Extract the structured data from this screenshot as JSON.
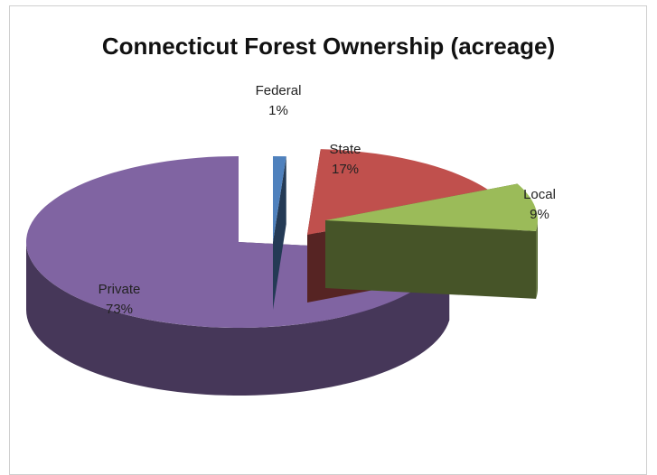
{
  "chart_data": {
    "type": "pie",
    "title": "Connecticut Forest Ownership (acreage)",
    "three_d": true,
    "exploded": true,
    "slices": [
      {
        "label": "Federal",
        "value": 1,
        "value_label": "1%",
        "color": "#4f81bd"
      },
      {
        "label": "State",
        "value": 17,
        "value_label": "17%",
        "color": "#c0504d"
      },
      {
        "label": "Local",
        "value": 9,
        "value_label": "9%",
        "color": "#9bbb59"
      },
      {
        "label": "Private",
        "value": 73,
        "value_label": "73%",
        "color": "#8064a2"
      }
    ],
    "legend": "none"
  }
}
